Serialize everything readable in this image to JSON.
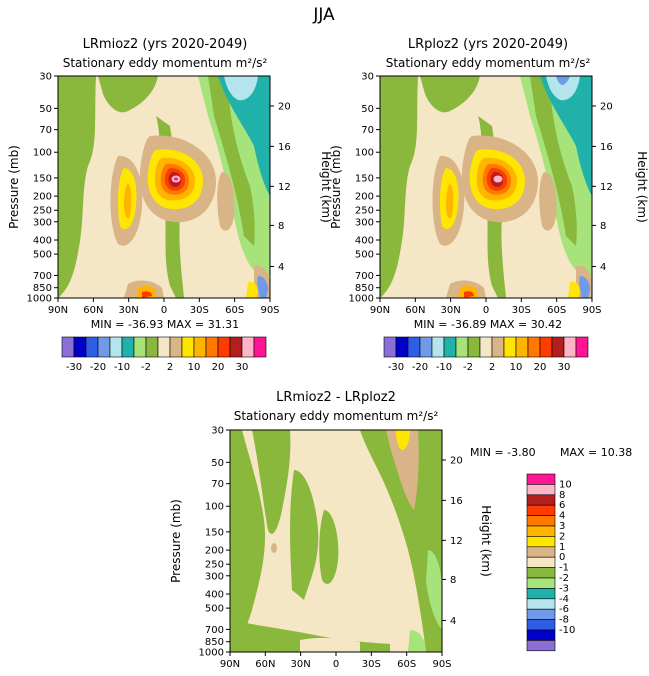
{
  "figure_title": "JJA",
  "colors": {
    "white": "#ffffff",
    "neg_lvls": [
      "#8a6fd6",
      "#0000c8",
      "#2f5ee6",
      "#6f9ae8",
      "#b4e4ec",
      "#20b2aa",
      "#a6e37a",
      "#8ab83c"
    ],
    "pos_lvls": [
      "#f5e6c6",
      "#d8b486",
      "#ffe600",
      "#ffb400",
      "#ff7800",
      "#ff3c00",
      "#b41e1e",
      "#ffb4c8",
      "#ff1493"
    ]
  },
  "chart_data": [
    {
      "type": "heatmap",
      "id": "p1",
      "title": "LRmioz2 (yrs 2020-2049)",
      "subtitle": "Stationary eddy momentum  m²/s²",
      "xlabel": "",
      "ylabel": "Pressure (mb)",
      "y2label": "Height (km)",
      "x_ticks": [
        "90N",
        "60N",
        "30N",
        "0",
        "30S",
        "60S",
        "90S"
      ],
      "y_ticks": [
        "30",
        "50",
        "70",
        "100",
        "150",
        "200",
        "250",
        "300",
        "400",
        "500",
        "700",
        "850",
        "1000"
      ],
      "y2_ticks": [
        "20",
        "16",
        "12",
        "8",
        "4"
      ],
      "stats": "MIN = -36.93   MAX =  31.31",
      "colorbar_labels": [
        "-30",
        "-20",
        "-10",
        "-2",
        "2",
        "10",
        "20",
        "30"
      ]
    },
    {
      "type": "heatmap",
      "id": "p2",
      "title": "LRploz2 (yrs 2020-2049)",
      "subtitle": "Stationary eddy momentum  m²/s²",
      "xlabel": "",
      "ylabel": "Pressure (mb)",
      "y2label": "Height (km)",
      "x_ticks": [
        "90N",
        "60N",
        "30N",
        "0",
        "30S",
        "60S",
        "90S"
      ],
      "y_ticks": [
        "30",
        "50",
        "70",
        "100",
        "150",
        "200",
        "250",
        "300",
        "400",
        "500",
        "700",
        "850",
        "1000"
      ],
      "y2_ticks": [
        "20",
        "16",
        "12",
        "8",
        "4"
      ],
      "stats": "MIN = -36.89   MAX =  30.42",
      "colorbar_labels": [
        "-30",
        "-20",
        "-10",
        "-2",
        "2",
        "10",
        "20",
        "30"
      ]
    },
    {
      "type": "heatmap",
      "id": "p3",
      "title": "LRmioz2 - LRploz2",
      "subtitle": "Stationary eddy momentum  m²/s²",
      "xlabel": "",
      "ylabel": "Pressure (mb)",
      "y2label": "Height (km)",
      "x_ticks": [
        "90N",
        "60N",
        "30N",
        "0",
        "30S",
        "60S",
        "90S"
      ],
      "y_ticks": [
        "30",
        "50",
        "70",
        "100",
        "150",
        "200",
        "250",
        "300",
        "400",
        "500",
        "700",
        "850",
        "1000"
      ],
      "y2_ticks": [
        "20",
        "16",
        "12",
        "8",
        "4"
      ],
      "stats_min": "MIN =   -3.80",
      "stats_max": "MAX =  10.38",
      "colorbar_labels": [
        "10",
        "8",
        "6",
        "4",
        "3",
        "2",
        "1",
        "0",
        "-1",
        "-2",
        "-3",
        "-4",
        "-6",
        "-8",
        "-10"
      ]
    }
  ]
}
